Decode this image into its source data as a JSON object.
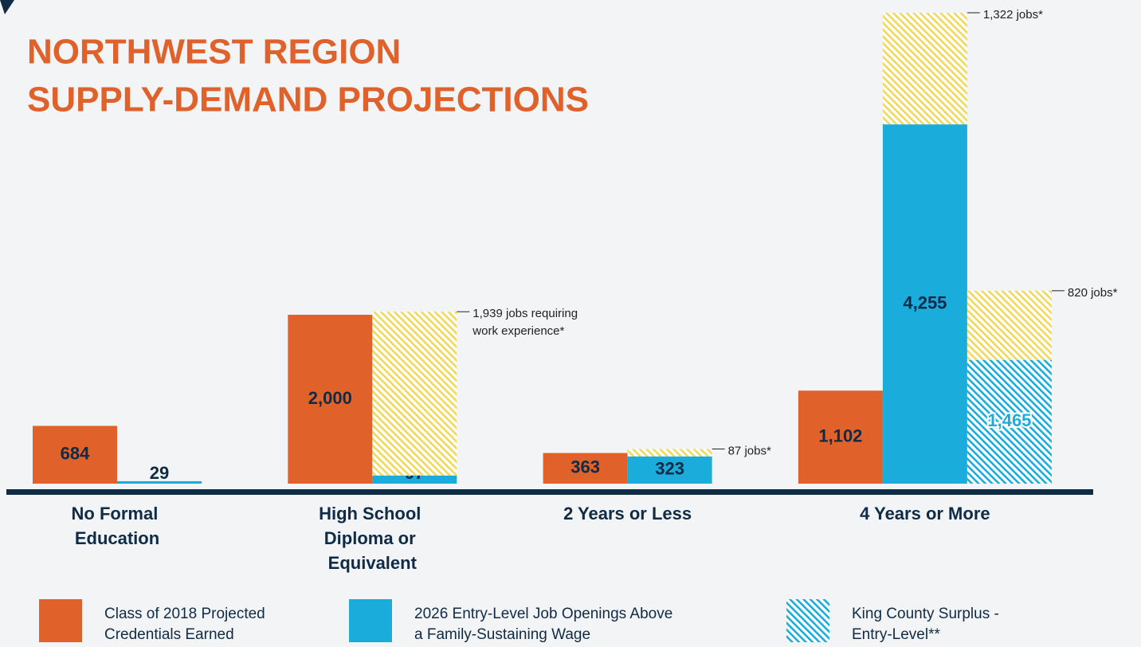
{
  "chart_data": {
    "type": "grouped_stacked_bar",
    "title": [
      "NORTHWEST REGION",
      "SUPPLY-DEMAND PROJECTIONS"
    ],
    "categories": [
      "No Formal Education",
      "High School Diploma or Equivalent",
      "2 Years or Less",
      "4 Years or More"
    ],
    "series": [
      {
        "name": "Class of 2018 Projected Credentials Earned",
        "color": "#e0622a",
        "column": 0,
        "values": [
          684,
          2000,
          363,
          1102
        ],
        "value_labels": [
          "684",
          "2,000",
          "363",
          "1,102"
        ]
      },
      {
        "name": "2026 Entry-Level Job Openings Above a Family-Sustaining Wage",
        "color": "#1aaddb",
        "column": 1,
        "values": [
          29,
          97,
          323,
          4255
        ],
        "value_labels": [
          "29",
          "97",
          "323",
          "4,255"
        ]
      },
      {
        "color": "#f0d95a",
        "pattern": "hatch",
        "column": 1,
        "values": [
          null,
          1939,
          87,
          1322
        ],
        "value_labels": [
          null,
          "1,939 jobs requiring work experience*",
          "87 jobs*",
          "1,322 jobs*"
        ]
      },
      {
        "name": "King County Surplus - Entry-Level**",
        "color": "#1aaddb",
        "pattern": "hatch",
        "column": 2,
        "values": [
          null,
          null,
          null,
          1465
        ],
        "value_labels": [
          null,
          null,
          null,
          "1,465"
        ]
      },
      {
        "color": "#f0d95a",
        "pattern": "hatch",
        "column": 2,
        "values": [
          null,
          null,
          null,
          820
        ],
        "value_labels": [
          null,
          null,
          null,
          "820 jobs*"
        ]
      }
    ]
  }
}
